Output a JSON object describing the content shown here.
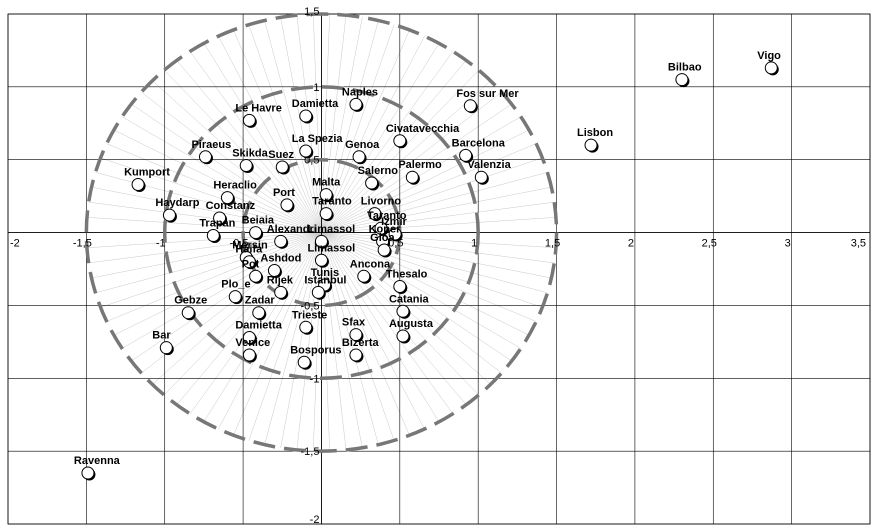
{
  "chart_data": {
    "type": "scatter",
    "title": "",
    "xlabel": "",
    "ylabel": "",
    "xlim": [
      -2,
      3.5
    ],
    "ylim": [
      -2,
      1.5
    ],
    "xticks": [
      -2,
      -1.5,
      -1,
      -0.5,
      0,
      0.5,
      1,
      1.5,
      2,
      2.5,
      3,
      3.5
    ],
    "yticks": [
      -2,
      -1.5,
      -1,
      -0.5,
      0,
      0.5,
      1,
      1.5
    ],
    "xtick_labels": [
      "-2",
      "-1,5",
      "-1",
      "-0,5",
      "0",
      "0,5",
      "1",
      "1,5",
      "2",
      "2,5",
      "3",
      "3,5"
    ],
    "ytick_labels": [
      "-2",
      "-1,5",
      "-1",
      "-0,5",
      "0",
      "0,5",
      "1",
      "1,5"
    ],
    "grid": true,
    "reference_circles": [
      {
        "radius": 1.5,
        "center": [
          0,
          0
        ]
      },
      {
        "radius": 1.0,
        "center": [
          0,
          0
        ]
      },
      {
        "radius": 0.5,
        "center": [
          0,
          0
        ]
      }
    ],
    "points": [
      {
        "label": "Vigo",
        "x": 2.87,
        "y": 1.13
      },
      {
        "label": "Bilbao",
        "x": 2.3,
        "y": 1.05
      },
      {
        "label": "Lisbon",
        "x": 1.72,
        "y": 0.6
      },
      {
        "label": "Fos sur Mer",
        "x": 0.95,
        "y": 0.87
      },
      {
        "label": "Barcelona",
        "x": 0.92,
        "y": 0.53
      },
      {
        "label": "Valenzia",
        "x": 1.02,
        "y": 0.38
      },
      {
        "label": "Civatavecchia",
        "x": 0.5,
        "y": 0.63
      },
      {
        "label": "Naples",
        "x": 0.22,
        "y": 0.88
      },
      {
        "label": "Damietta",
        "x": -0.1,
        "y": 0.8
      },
      {
        "label": "Le Havre",
        "x": -0.46,
        "y": 0.77
      },
      {
        "label": "La Spezia",
        "x": -0.1,
        "y": 0.56
      },
      {
        "label": "Genoa",
        "x": 0.24,
        "y": 0.52
      },
      {
        "label": "Palermo",
        "x": 0.58,
        "y": 0.38
      },
      {
        "label": "Salerno",
        "x": 0.32,
        "y": 0.34
      },
      {
        "label": "Piraeus",
        "x": -0.74,
        "y": 0.52
      },
      {
        "label": "Skikda",
        "x": -0.48,
        "y": 0.46
      },
      {
        "label": "Suez",
        "x": -0.25,
        "y": 0.45
      },
      {
        "label": "Kumport",
        "x": -1.17,
        "y": 0.33
      },
      {
        "label": "Heraclio",
        "x": -0.6,
        "y": 0.24
      },
      {
        "label": "Port",
        "x": -0.22,
        "y": 0.19
      },
      {
        "label": "Malta",
        "x": 0.03,
        "y": 0.26
      },
      {
        "label": "Haydarp",
        "x": -0.97,
        "y": 0.12
      },
      {
        "label": "Constanz",
        "x": -0.65,
        "y": 0.1
      },
      {
        "label": "Livorno",
        "x": 0.34,
        "y": 0.13
      },
      {
        "label": "Taranto",
        "x": 0.03,
        "y": 0.13
      },
      {
        "label": "Taranto",
        "x": 0.38,
        "y": 0.03
      },
      {
        "label": "Izmir",
        "x": 0.47,
        "y": -0.01
      },
      {
        "label": "Beiaia",
        "x": -0.42,
        "y": 0.0
      },
      {
        "label": "Trapan",
        "x": -0.69,
        "y": -0.02
      },
      {
        "label": "Alexandri",
        "x": -0.26,
        "y": -0.06
      },
      {
        "label": "Limassol",
        "x": 0.0,
        "y": -0.06
      },
      {
        "label": "Koper",
        "x": 0.39,
        "y": -0.06
      },
      {
        "label": "Gioa",
        "x": 0.4,
        "y": -0.12
      },
      {
        "label": "Mersin",
        "x": -0.48,
        "y": -0.17
      },
      {
        "label": "Haifa",
        "x": -0.46,
        "y": -0.2
      },
      {
        "label": "Limassol",
        "x": 0.0,
        "y": -0.19
      },
      {
        "label": "Ashdod",
        "x": -0.3,
        "y": -0.26
      },
      {
        "label": "Pot",
        "x": -0.42,
        "y": -0.3
      },
      {
        "label": "Ancona",
        "x": 0.27,
        "y": -0.3
      },
      {
        "label": "Thesalo",
        "x": 0.5,
        "y": -0.37
      },
      {
        "label": "Tunis",
        "x": 0.02,
        "y": -0.36
      },
      {
        "label": "Rijek",
        "x": -0.26,
        "y": -0.41
      },
      {
        "label": "Istanbul",
        "x": -0.02,
        "y": -0.41
      },
      {
        "label": "Plo_e",
        "x": -0.55,
        "y": -0.44
      },
      {
        "label": "Gebze",
        "x": -0.85,
        "y": -0.55
      },
      {
        "label": "Zadar",
        "x": -0.4,
        "y": -0.55
      },
      {
        "label": "Trieste",
        "x": -0.1,
        "y": -0.65
      },
      {
        "label": "Catania",
        "x": 0.52,
        "y": -0.54
      },
      {
        "label": "Sfax",
        "x": 0.22,
        "y": -0.7
      },
      {
        "label": "Damietta",
        "x": -0.46,
        "y": -0.72
      },
      {
        "label": "Augusta",
        "x": 0.52,
        "y": -0.71
      },
      {
        "label": "Bar",
        "x": -0.99,
        "y": -0.79
      },
      {
        "label": "Venice",
        "x": -0.46,
        "y": -0.84
      },
      {
        "label": "Bizerta",
        "x": 0.22,
        "y": -0.84
      },
      {
        "label": "Bosporus",
        "x": -0.11,
        "y": -0.89
      },
      {
        "label": "Ravenna",
        "x": -1.49,
        "y": -1.65
      }
    ]
  }
}
